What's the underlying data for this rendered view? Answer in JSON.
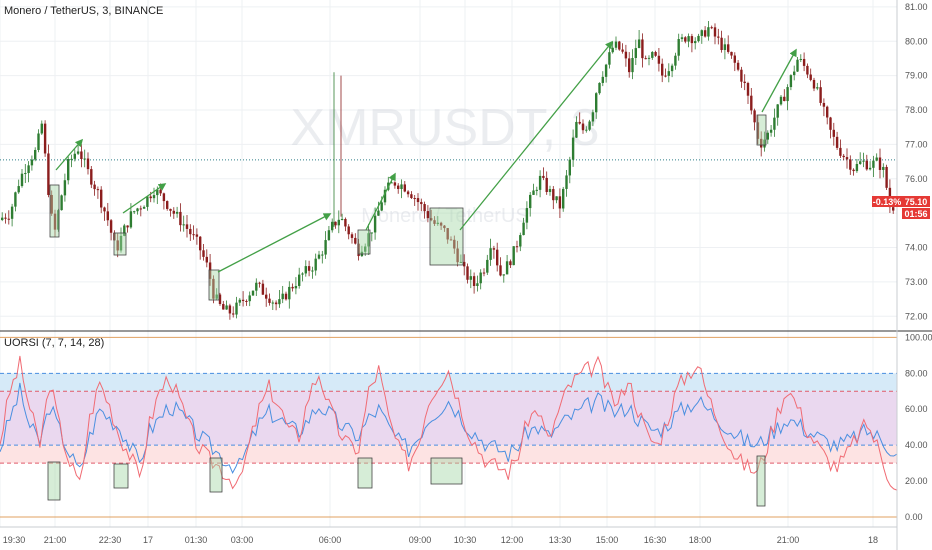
{
  "header": {
    "symbol_title": "Monero / TetherUS, 3, BINANCE",
    "watermark_symbol": "XMRUSDT, 3",
    "watermark_desc": "Monero / TetherUS",
    "indicator_title": "UORSI (7, 7, 14, 28)"
  },
  "price_scale": {
    "ticks": [
      "81.00",
      "80.00",
      "79.00",
      "78.00",
      "77.00",
      "76.00",
      "75.00",
      "74.00",
      "73.00",
      "72.00"
    ],
    "current_change": "-0.13%",
    "current_price": "75.10",
    "countdown": "01:56"
  },
  "indicator_scale": {
    "ticks": [
      "100.00",
      "80.00",
      "60.00",
      "40.00",
      "20.00",
      "0.00"
    ]
  },
  "time_axis": {
    "labels": [
      "19:30",
      "21:00",
      "22:30",
      "17",
      "01:30",
      "03:00",
      "06:00",
      "09:00",
      "10:30",
      "12:00",
      "13:30",
      "15:00",
      "16:30",
      "18:00",
      "21:00",
      "18"
    ]
  },
  "colors": {
    "up": "#26a69a",
    "down": "#ef5350",
    "candle_up": "#2e7d32",
    "candle_down": "#8b1d1d",
    "arrow": "#43a047",
    "rsi_fast": "#f06b73",
    "rsi_slow": "#4a8fe0",
    "band_top": "#d6eaf8",
    "band_mid": "#ead8ef",
    "band_low": "#fde3e3",
    "badge": "#e53935",
    "grid": "#eef0f3"
  },
  "chart_data": [
    {
      "type": "candlestick",
      "title": "Monero / TetherUS, 3, BINANCE",
      "ylim": [
        71.6,
        81.2
      ],
      "current_value": 75.1,
      "path_anchors": [
        [
          0,
          74.8
        ],
        [
          12,
          75.0
        ],
        [
          22,
          76.0
        ],
        [
          32,
          76.6
        ],
        [
          38,
          76.8
        ],
        [
          44,
          77.6
        ],
        [
          50,
          75.8
        ],
        [
          56,
          74.3
        ],
        [
          62,
          75.3
        ],
        [
          70,
          76.4
        ],
        [
          80,
          76.9
        ],
        [
          90,
          76.2
        ],
        [
          100,
          75.6
        ],
        [
          110,
          74.8
        ],
        [
          118,
          73.9
        ],
        [
          126,
          74.5
        ],
        [
          134,
          75.0
        ],
        [
          146,
          75.3
        ],
        [
          156,
          75.7
        ],
        [
          166,
          75.4
        ],
        [
          176,
          75.0
        ],
        [
          188,
          74.6
        ],
        [
          200,
          74.1
        ],
        [
          210,
          73.4
        ],
        [
          216,
          72.6
        ],
        [
          224,
          72.2
        ],
        [
          234,
          72.1
        ],
        [
          246,
          72.5
        ],
        [
          258,
          72.9
        ],
        [
          270,
          72.6
        ],
        [
          280,
          72.3
        ],
        [
          292,
          72.8
        ],
        [
          304,
          73.2
        ],
        [
          316,
          73.5
        ],
        [
          326,
          74.0
        ],
        [
          334,
          74.6
        ],
        [
          342,
          74.9
        ],
        [
          350,
          74.5
        ],
        [
          360,
          73.9
        ],
        [
          368,
          74.2
        ],
        [
          378,
          74.8
        ],
        [
          386,
          75.6
        ],
        [
          396,
          75.9
        ],
        [
          406,
          75.8
        ],
        [
          416,
          75.5
        ],
        [
          426,
          75.1
        ],
        [
          436,
          74.7
        ],
        [
          446,
          74.5
        ],
        [
          456,
          74.0
        ],
        [
          466,
          73.3
        ],
        [
          476,
          72.9
        ],
        [
          486,
          73.4
        ],
        [
          494,
          74.3
        ],
        [
          502,
          73.2
        ],
        [
          510,
          73.5
        ],
        [
          518,
          74.0
        ],
        [
          526,
          74.9
        ],
        [
          534,
          75.5
        ],
        [
          542,
          76.0
        ],
        [
          552,
          75.6
        ],
        [
          562,
          75.2
        ],
        [
          570,
          76.2
        ],
        [
          578,
          77.6
        ],
        [
          586,
          77.4
        ],
        [
          594,
          77.9
        ],
        [
          600,
          78.8
        ],
        [
          608,
          79.3
        ],
        [
          616,
          79.9
        ],
        [
          624,
          79.7
        ],
        [
          632,
          79.1
        ],
        [
          640,
          80.1
        ],
        [
          648,
          79.3
        ],
        [
          656,
          79.6
        ],
        [
          664,
          79.0
        ],
        [
          672,
          79.3
        ],
        [
          680,
          79.9
        ],
        [
          690,
          80.2
        ],
        [
          700,
          80.0
        ],
        [
          710,
          80.4
        ],
        [
          718,
          80.1
        ],
        [
          726,
          79.8
        ],
        [
          736,
          79.4
        ],
        [
          746,
          78.8
        ],
        [
          756,
          77.7
        ],
        [
          762,
          77.0
        ],
        [
          770,
          77.3
        ],
        [
          778,
          77.9
        ],
        [
          786,
          78.4
        ],
        [
          794,
          79.0
        ],
        [
          800,
          79.5
        ],
        [
          808,
          79.2
        ],
        [
          816,
          78.8
        ],
        [
          824,
          78.1
        ],
        [
          832,
          77.4
        ],
        [
          840,
          76.9
        ],
        [
          848,
          76.6
        ],
        [
          856,
          76.3
        ],
        [
          864,
          76.5
        ],
        [
          872,
          76.4
        ],
        [
          880,
          76.5
        ],
        [
          886,
          76.2
        ],
        [
          892,
          75.2
        ]
      ],
      "reference_line": 76.55
    },
    {
      "type": "line",
      "title": "UORSI (7, 7, 14, 28)",
      "ylim": [
        -5,
        103
      ],
      "levels": [
        80,
        70,
        40,
        30
      ],
      "series": [
        {
          "values": [
            38,
            55,
            70,
            50,
            42,
            62,
            48,
            35,
            25,
            45,
            60,
            55,
            50,
            40,
            30,
            48,
            55,
            62,
            58,
            52,
            45,
            40,
            35,
            30,
            28,
            40,
            52,
            58,
            55,
            50,
            48,
            55,
            62,
            58,
            52,
            48,
            45,
            55,
            60,
            50,
            42,
            38,
            45,
            55,
            60,
            65,
            58,
            50,
            45,
            40,
            38,
            35,
            40,
            48,
            50,
            45,
            50,
            55,
            58,
            62,
            65,
            60,
            58,
            62,
            55,
            50,
            48,
            52,
            58,
            62,
            65,
            60,
            55,
            50,
            45,
            42,
            40,
            45,
            50,
            55,
            52,
            48,
            45,
            42,
            40,
            42,
            45,
            48,
            45,
            40,
            35
          ]
        },
        {
          "values": [
            42,
            70,
            85,
            60,
            40,
            75,
            50,
            30,
            18,
            55,
            75,
            62,
            45,
            35,
            22,
            52,
            70,
            78,
            65,
            50,
            38,
            32,
            28,
            22,
            18,
            40,
            60,
            72,
            62,
            48,
            45,
            68,
            80,
            62,
            48,
            40,
            38,
            70,
            82,
            55,
            38,
            30,
            42,
            65,
            75,
            82,
            65,
            48,
            38,
            30,
            28,
            25,
            35,
            55,
            60,
            42,
            58,
            72,
            78,
            82,
            85,
            70,
            62,
            78,
            60,
            45,
            40,
            55,
            72,
            80,
            85,
            68,
            55,
            42,
            32,
            28,
            25,
            40,
            58,
            72,
            62,
            48,
            40,
            32,
            28,
            35,
            45,
            52,
            40,
            25,
            15
          ]
        }
      ]
    }
  ]
}
